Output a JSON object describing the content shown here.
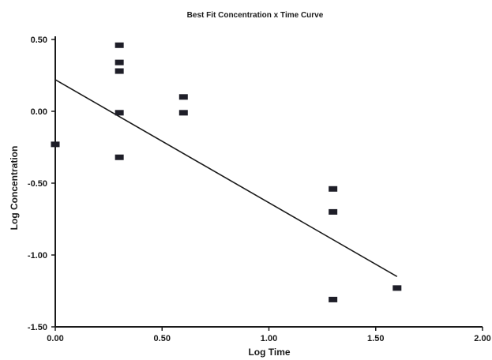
{
  "chart_data": {
    "type": "scatter",
    "title": "Best Fit Concentration x Time Curve",
    "xlabel": "Log Time",
    "ylabel": "Log Concentration",
    "xlim": [
      0.0,
      2.0
    ],
    "ylim": [
      -1.5,
      0.5
    ],
    "x_ticks": [
      "0.00",
      "0.50",
      "1.00",
      "1.50",
      "2.00"
    ],
    "y_ticks": [
      "0.50",
      "0.00",
      "-0.50",
      "-1.00",
      "-1.50"
    ],
    "x_tick_values": [
      0.0,
      0.5,
      1.0,
      1.5,
      2.0
    ],
    "y_tick_values": [
      0.5,
      0.0,
      -0.5,
      -1.0,
      -1.5
    ],
    "grid": false,
    "legend": "none",
    "series": [
      {
        "kind": "points",
        "x": [
          0.0,
          0.3,
          0.3,
          0.3,
          0.3,
          0.3,
          0.6,
          0.6,
          1.3,
          1.3,
          1.3,
          1.6
        ],
        "y": [
          -0.23,
          0.46,
          0.34,
          0.28,
          -0.01,
          -0.32,
          0.1,
          -0.01,
          -0.54,
          -0.7,
          -1.31,
          -1.23
        ]
      },
      {
        "kind": "fit-line",
        "x": [
          0.0,
          1.6
        ],
        "y": [
          0.22,
          -1.15
        ]
      }
    ],
    "colors": {
      "marker": "#1e1e28",
      "line": "#1a1a1a",
      "axis": "#1a1a1a"
    }
  }
}
